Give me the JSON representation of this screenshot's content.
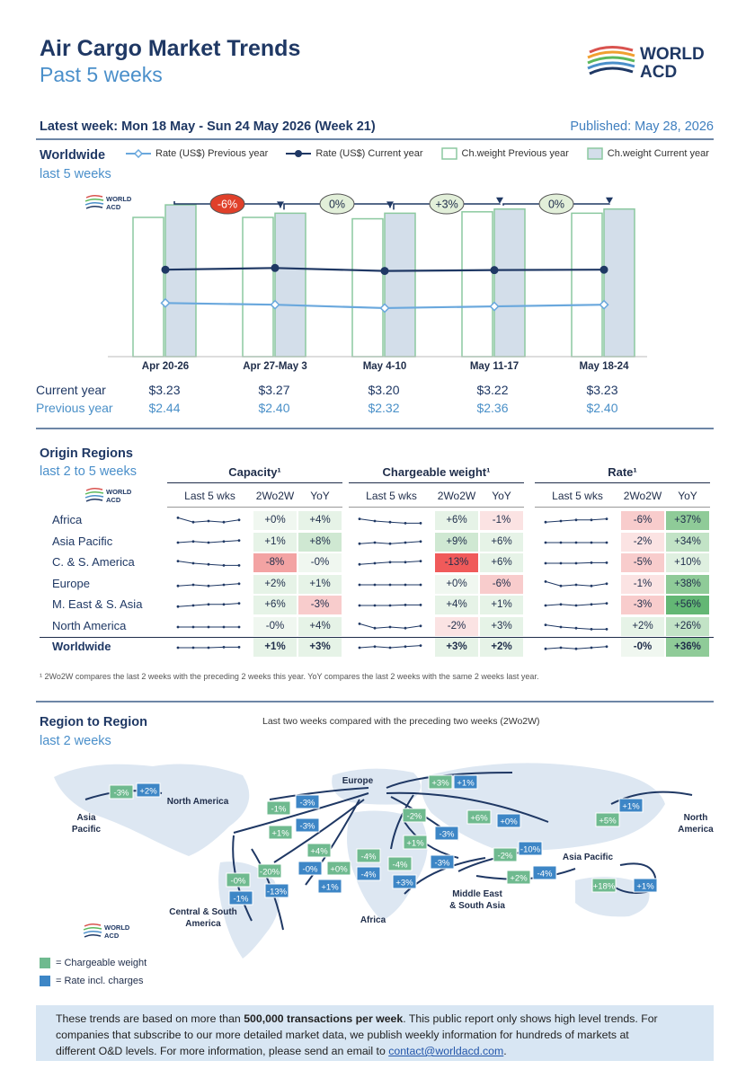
{
  "header": {
    "title": "Air Cargo Market Trends",
    "subtitle": "Past 5 weeks",
    "logo_text_1": "WORLD",
    "logo_text_2": "ACD",
    "latest_week": "Latest week:  Mon 18 May - Sun 24 May 2026 (Week 21)",
    "published": "Published: May 28, 2026"
  },
  "worldwide": {
    "title": "Worldwide",
    "subtitle": "last 5 weeks",
    "legend": {
      "rate_prev": "Rate (US$) Previous year",
      "rate_curr": "Rate (US$) Current year",
      "cw_prev": "Ch.weight Previous year",
      "cw_curr": "Ch.weight Current year"
    },
    "row_current_label": "Current year",
    "row_previous_label": "Previous year",
    "current_prices": [
      "$3.23",
      "$3.27",
      "$3.20",
      "$3.22",
      "$3.23"
    ],
    "previous_prices": [
      "$2.44",
      "$2.40",
      "$2.32",
      "$2.36",
      "$2.40"
    ],
    "changes": [
      "-6%",
      "0%",
      "+3%",
      "0%"
    ],
    "colors": {
      "navy": "#1f3864",
      "light_blue": "#6aa8dd",
      "bar_curr": "#d3deea",
      "bar_prev": "#ffffff",
      "bar_edge": "#8cc9a0",
      "neg": "#e0402a",
      "neutral": "#e2efd9"
    }
  },
  "chart_data": {
    "type": "bar",
    "categories": [
      "Apr 20-26",
      "Apr 27-May 3",
      "May 4-10",
      "May 11-17",
      "May 18-24"
    ],
    "series": [
      {
        "name": "Ch.weight Previous year",
        "kind": "bar",
        "values": [
          100,
          100,
          99,
          104,
          103
        ]
      },
      {
        "name": "Ch.weight Current year",
        "kind": "bar",
        "values": [
          109,
          103,
          103,
          106,
          106
        ]
      },
      {
        "name": "Rate (US$) Previous year",
        "kind": "line",
        "values": [
          2.44,
          2.4,
          2.32,
          2.36,
          2.4
        ]
      },
      {
        "name": "Rate (US$) Current year",
        "kind": "line",
        "values": [
          3.23,
          3.27,
          3.2,
          3.22,
          3.23
        ]
      }
    ],
    "week_changes": [
      "-6%",
      "0%",
      "+3%",
      "0%"
    ]
  },
  "origin": {
    "title": "Origin Regions",
    "subtitle": "last 2 to 5 weeks",
    "group_headers": [
      "Capacity¹",
      "Chargeable weight¹",
      "Rate¹"
    ],
    "sub_headers": [
      "Last 5 wks",
      "2Wo2W",
      "YoY"
    ],
    "rows": [
      {
        "name": "Africa",
        "cap": [
          "+0%",
          "+4%"
        ],
        "cw": [
          "+6%",
          "-1%"
        ],
        "rate": [
          "-6%",
          "+37%"
        ]
      },
      {
        "name": "Asia Pacific",
        "cap": [
          "+1%",
          "+8%"
        ],
        "cw": [
          "+9%",
          "+6%"
        ],
        "rate": [
          "-2%",
          "+34%"
        ]
      },
      {
        "name": "C. & S. America",
        "cap": [
          "-8%",
          "-0%"
        ],
        "cw": [
          "-13%",
          "+6%"
        ],
        "rate": [
          "-5%",
          "+10%"
        ]
      },
      {
        "name": "Europe",
        "cap": [
          "+2%",
          "+1%"
        ],
        "cw": [
          "+0%",
          "-6%"
        ],
        "rate": [
          "-1%",
          "+38%"
        ]
      },
      {
        "name": "M. East & S. Asia",
        "cap": [
          "+6%",
          "-3%"
        ],
        "cw": [
          "+4%",
          "+1%"
        ],
        "rate": [
          "-3%",
          "+56%"
        ]
      },
      {
        "name": "North America",
        "cap": [
          "-0%",
          "+4%"
        ],
        "cw": [
          "-2%",
          "+3%"
        ],
        "rate": [
          "+2%",
          "+26%"
        ]
      },
      {
        "name": "Worldwide",
        "cap": [
          "+1%",
          "+3%"
        ],
        "cw": [
          "+3%",
          "+2%"
        ],
        "rate": [
          "-0%",
          "+36%"
        ]
      }
    ],
    "footnote": "¹ 2Wo2W compares the last 2 weeks with the preceding 2 weeks this year. YoY compares the last 2 weeks with the same 2 weeks last year."
  },
  "region": {
    "title": "Region to Region",
    "subtitle": "last 2 weeks",
    "note": "Last two weeks compared with the preceding two weeks (2Wo2W)",
    "labels": {
      "europe": "Europe",
      "north_america_left": "North America",
      "asia_pacific_left": "Asia\nPacific",
      "north_america_right": "North\nAmerica",
      "asia_pacific_right": "Asia Pacific",
      "central_south_america": "Central & South\nAmerica",
      "africa": "Africa",
      "middle_east": "Middle East\n& South Asia"
    },
    "legend_cw": "= Chargeable weight",
    "legend_rate": "= Rate incl. charges",
    "badges": [
      {
        "t": "-3%",
        "k": "g"
      },
      {
        "t": "+2%",
        "k": "b"
      },
      {
        "t": "-1%",
        "k": "g"
      },
      {
        "t": "-3%",
        "k": "b"
      },
      {
        "t": "+1%",
        "k": "g"
      },
      {
        "t": "-3%",
        "k": "b"
      },
      {
        "t": "+4%",
        "k": "g"
      },
      {
        "t": "-0%",
        "k": "b"
      },
      {
        "t": "+0%",
        "k": "g"
      },
      {
        "t": "+1%",
        "k": "b"
      },
      {
        "t": "-0%",
        "k": "g"
      },
      {
        "t": "-20%",
        "k": "g"
      },
      {
        "t": "-1%",
        "k": "b"
      },
      {
        "t": "-13%",
        "k": "b"
      },
      {
        "t": "+3%",
        "k": "g"
      },
      {
        "t": "+1%",
        "k": "b"
      },
      {
        "t": "-2%",
        "k": "g"
      },
      {
        "t": "+6%",
        "k": "g"
      },
      {
        "t": "+0%",
        "k": "b"
      },
      {
        "t": "+1%",
        "k": "g"
      },
      {
        "t": "-3%",
        "k": "b"
      },
      {
        "t": "-4%",
        "k": "g"
      },
      {
        "t": "-4%",
        "k": "b"
      },
      {
        "t": "-4%",
        "k": "g"
      },
      {
        "t": "+3%",
        "k": "b"
      },
      {
        "t": "-3%",
        "k": "b"
      },
      {
        "t": "-2%",
        "k": "g"
      },
      {
        "t": "-10%",
        "k": "b"
      },
      {
        "t": "+2%",
        "k": "g"
      },
      {
        "t": "-4%",
        "k": "b"
      },
      {
        "t": "+1%",
        "k": "b"
      },
      {
        "t": "+5%",
        "k": "g"
      },
      {
        "t": "+18%",
        "k": "g"
      },
      {
        "t": "+1%",
        "k": "b"
      }
    ]
  },
  "footer": {
    "line1_a": "These trends are based on more than ",
    "line1_b": "500,000 transactions per week",
    "line1_c": ". This public report only shows high level trends. For",
    "line2": "companies that subscribe to our more detailed market data, we publish weekly information for hundreds of markets at",
    "line3_a": "different O&D levels. For more information, please send an email to ",
    "email": "contact@worldacd.com",
    "line3_b": "."
  }
}
